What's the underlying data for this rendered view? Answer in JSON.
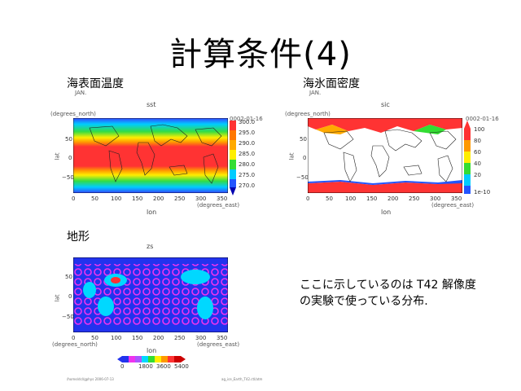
{
  "slide": {
    "title": "計算条件(4)",
    "note_lines": [
      "ここに示しているのは T42 解像度",
      "の実験で使っている分布."
    ],
    "footer_left": "/home/dcl/gphys 2006-07-13",
    "footer_right": "ag_ice_Earth_T42.ctl/atm"
  },
  "panels": {
    "sst": {
      "heading": "海表面温度",
      "month": "JAN.",
      "var": "sst",
      "ylabel": "lat",
      "yunit": "(degrees_north)",
      "xlabel": "lon",
      "xunit": "(degrees_east)",
      "date": "0002-01-16",
      "xticks": [
        "0",
        "50",
        "100",
        "150",
        "200",
        "250",
        "300",
        "350"
      ],
      "yticks": [
        "50",
        "0",
        "−50"
      ],
      "cbar_ticks": [
        "300.0",
        "295.0",
        "290.0",
        "285.0",
        "280.0",
        "275.0",
        "270.0"
      ]
    },
    "sic": {
      "heading": "海氷面密度",
      "month": "JAN.",
      "var": "sic",
      "ylabel": "lat",
      "yunit": "(degrees_north)",
      "xlabel": "lon",
      "xunit": "(degrees_east)",
      "date": "0002-01-16",
      "xticks": [
        "0",
        "50",
        "100",
        "150",
        "200",
        "250",
        "300",
        "350"
      ],
      "yticks": [
        "50",
        "0",
        "−50"
      ],
      "cbar_ticks": [
        "100",
        "80",
        "60",
        "40",
        "20",
        "1e-10"
      ]
    },
    "zs": {
      "heading": "地形",
      "var": "zs",
      "ylabel": "lat",
      "yunit": "(degrees_north)",
      "xlabel": "lon",
      "xunit": "(degrees_east)",
      "xticks": [
        "0",
        "50",
        "100",
        "150",
        "200",
        "250",
        "300",
        "350"
      ],
      "yticks": [
        "50",
        "0",
        "−50"
      ],
      "cbar_ticks": [
        "0",
        "1800",
        "3600",
        "5400"
      ]
    }
  },
  "colors": {
    "red": "#ff3b3b",
    "orange": "#ff9900",
    "yellow": "#ffee00",
    "green": "#33dd33",
    "cyan": "#00d8ff",
    "blue": "#2255ff",
    "navy": "#0000b0",
    "magenta": "#ee33ee"
  }
}
